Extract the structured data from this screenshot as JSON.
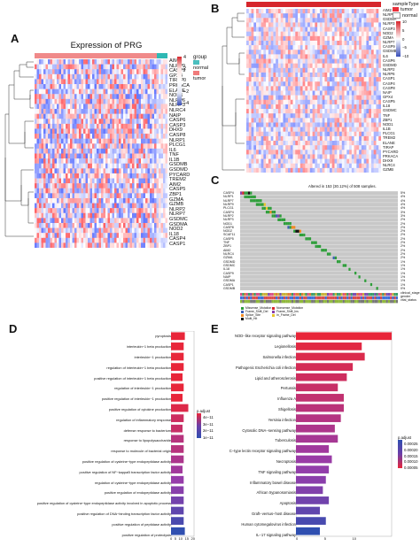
{
  "panels": {
    "A": {
      "label": "A",
      "title": "Expression of PRG",
      "group_legend_title": "group",
      "groups": [
        {
          "name": "normal",
          "color": "#4bbfbf"
        },
        {
          "name": "tumor",
          "color": "#f07b7b"
        }
      ],
      "scale_ticks": [
        "4",
        "2",
        "0",
        "−2",
        "−4"
      ],
      "genes": [
        "AIM2",
        "NLRP9",
        "CASP9",
        "GPX4",
        "TIRAP",
        "PRKACA",
        "ELANE",
        "NOD1",
        "NLRP6",
        "NLRP3",
        "NLRC4",
        "NAIP",
        "CASP6",
        "CASP3",
        "DHX9",
        "CASP8",
        "NLRP1",
        "PLCG1",
        "IL6",
        "TNF",
        "IL1B",
        "GSDMB",
        "GSDMD",
        "PYCARD",
        "TREM2",
        "AIM2",
        "CASP5",
        "ZBP1",
        "GZMA",
        "GZMB",
        "NLRP2",
        "NLRP7",
        "GSDMC",
        "GSDMA",
        "NOD2",
        "IL18",
        "CASP4",
        "CASP1"
      ]
    },
    "B": {
      "label": "B",
      "legend_title": "sampleType",
      "legend_items": [
        {
          "name": "tumor",
          "color": "#e8303a"
        },
        {
          "name": "normal",
          "color": "#ffffff"
        }
      ],
      "scale_ticks": [
        "10",
        "5",
        "0",
        "−5",
        "−10"
      ],
      "genes": [
        "AIM2",
        "NLRP1",
        "GSDMA",
        "NLRP3",
        "CASP3",
        "NOD2",
        "GZMA",
        "NLRP7",
        "CASP9",
        "GSDMB",
        "IL6",
        "CASP6",
        "GSDMD",
        "NLRP2",
        "NLRP6",
        "CASP1",
        "CASP4",
        "CASP8",
        "NAIP",
        "GPX4",
        "CASP5",
        "IL18",
        "GSDMC",
        "TNF",
        "ZBP1",
        "NOD1",
        "IL1B",
        "PLCG1",
        "TREM2",
        "ELANE",
        "TIRAP",
        "PYCARD",
        "PRKACA",
        "DHX9",
        "NLRC4",
        "GZMB"
      ]
    },
    "C": {
      "label": "C",
      "header": "Altered in 153 (30.12%) of 508 samples.",
      "genes": [
        "CASP4",
        "NLRP1",
        "NLRP7",
        "NLRP9",
        "PLCG1",
        "CASP4",
        "NLRP2",
        "NLRP3",
        "NOD1",
        "CASP8",
        "NOD2",
        "SCAF11",
        "CASP5",
        "TNF",
        "ZBP1",
        "AIM2",
        "NLRC4",
        "GZMA",
        "GSDMD",
        "GSDMC",
        "IL18",
        "CASP9",
        "NAIP",
        "GSDMA",
        "CASP1",
        "GSDMB"
      ],
      "percents": [
        "5%",
        "4%",
        "4%",
        "4%",
        "4%",
        "3%",
        "3%",
        "2%",
        "2%",
        "2%",
        "2%",
        "2%",
        "2%",
        "2%",
        "2%",
        "2%",
        "2%",
        "2%",
        "1%",
        "1%",
        "1%",
        "1%",
        "1%",
        "1%",
        "1%",
        "0%"
      ],
      "alteration_legend": [
        "Missense_Mutation",
        "Nonsense_Mutation",
        "Frame_Shift_Del",
        "Frame_Shift_Ins",
        "Splice_Site",
        "In_Frame_Del",
        "Multi_Hit"
      ],
      "alteration_colors": [
        "#2e9e3a",
        "#d9262c",
        "#3b5fb5",
        "#8b3fa8",
        "#f08a24",
        "#e8c52a",
        "#111111"
      ],
      "clinical_tracks": [
        "clinical_stage",
        "gender",
        "vital_status"
      ]
    },
    "D": {
      "label": "D",
      "legend_title": "p.adjust",
      "legend_ticks": [
        "4e−11",
        "3e−11",
        "2e−11",
        "1e−11"
      ],
      "xticks": [
        "0",
        "5",
        "10",
        "15",
        "20"
      ]
    },
    "E": {
      "label": "E",
      "legend_title": "p.adjust",
      "legend_ticks": [
        "0.00025",
        "0.00020",
        "0.00015",
        "0.00010",
        "0.00005"
      ],
      "xticks": [
        "0",
        "5",
        "10"
      ]
    }
  },
  "chart_data": [
    {
      "type": "bar",
      "panel": "D",
      "orientation": "horizontal",
      "xlabel": "",
      "categories": [
        "pyroptosis",
        "interleukin−1 beta production",
        "interleukin−1 production",
        "regulation of interleukin−1 beta production",
        "positive regulation of interleukin−1 beta production",
        "regulation of interleukin−1 production",
        "positive regulation of interleukin−1 production",
        "positive regulation of cytokine production",
        "regulation of inflammatory response",
        "defense response to bacterium",
        "response to lipopolysaccharide",
        "response to molecule of bacterial origin",
        "positive regulation of cysteine−type endopeptidase activity",
        "positive regulation of NF−kappaB transcription factor activity",
        "regulation of cysteine−type endopeptidase activity",
        "positive regulation of endopeptidase activity",
        "positive regulation of cysteine−type endopeptidase activity involved in apoptotic process",
        "positive regulation of DNA−binding transcription factor activity",
        "positive regulation of peptidase activity",
        "positive regulation of proteolysis"
      ],
      "values": [
        12,
        11,
        11,
        11,
        10,
        11,
        10,
        15,
        11,
        10,
        11,
        11,
        11,
        10,
        11,
        11,
        11,
        11,
        11,
        12
      ],
      "color_values": [
        1e-11,
        1e-11,
        1e-11,
        1e-11,
        1e-11,
        1e-11,
        1e-11,
        1.2e-11,
        1.5e-11,
        1.6e-11,
        1.9e-11,
        1.9e-11,
        2.1e-11,
        2.3e-11,
        2.5e-11,
        2.7e-11,
        3e-11,
        3.3e-11,
        3.6e-11,
        4e-11
      ],
      "xlim": [
        0,
        20
      ]
    },
    {
      "type": "bar",
      "panel": "E",
      "orientation": "horizontal",
      "xlabel": "",
      "categories": [
        "NOD−like receptor signaling pathway",
        "Legionellosis",
        "Salmonella infection",
        "Pathogenic Escherichia coli infection",
        "Lipid and atherosclerosis",
        "Pertussis",
        "Influenza A",
        "Shigellosis",
        "Yersinia infection",
        "Cytosolic DNA−sensing pathway",
        "Tuberculosis",
        "C−type lectin receptor signaling pathway",
        "Necroptosis",
        "TNF signaling pathway",
        "Inflammatory bowel disease",
        "African trypanosomiasis",
        "Apoptosis",
        "Graft−versus−host disease",
        "Human cytomegalovirus infection",
        "IL−17 signaling pathway"
      ],
      "values": [
        16,
        11,
        11.5,
        9.5,
        8.5,
        7,
        8,
        8,
        7.5,
        6.5,
        7,
        5.5,
        6,
        5.5,
        5,
        4.5,
        5.5,
        4,
        5,
        4
      ],
      "color_values": [
        1e-05,
        2e-05,
        3e-05,
        4e-05,
        5e-05,
        6e-05,
        7e-05,
        8e-05,
        9e-05,
        0.0001,
        0.00011,
        0.00012,
        0.00013,
        0.00014,
        0.00015,
        0.00016,
        0.00018,
        0.0002,
        0.00023,
        0.00026
      ],
      "xlim": [
        0,
        16
      ]
    }
  ]
}
